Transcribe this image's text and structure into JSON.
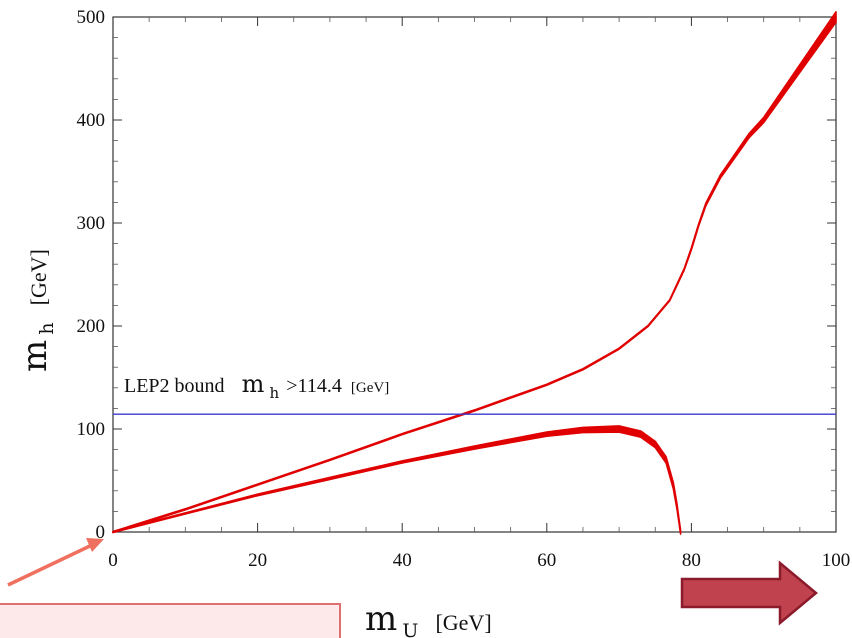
{
  "chart_data": {
    "type": "line",
    "xlim": [
      0,
      100
    ],
    "ylim": [
      0,
      500
    ],
    "x_ticks": [
      0,
      20,
      40,
      60,
      80,
      100
    ],
    "y_ticks": [
      0,
      100,
      200,
      300,
      400,
      500
    ],
    "x_tick_labels": [
      "0",
      "20",
      "40",
      "60",
      "80",
      "100"
    ],
    "y_tick_labels": [
      "0",
      "100",
      "200",
      "300",
      "400",
      "500"
    ],
    "xlabel": {
      "main": "m",
      "sub": "U",
      "unit": "[GeV]"
    },
    "ylabel": {
      "main": "m",
      "sub": "h",
      "unit": "[GeV]"
    },
    "grid": false,
    "colors": {
      "curve": "#e00000",
      "bound": "#3a3ad0",
      "arrow_fill": "#c0424e",
      "arrow_stroke": "#8b1a2a",
      "pointer": "#f07060",
      "box_fill": "#fde9e9",
      "box_stroke": "#e07070"
    },
    "series": [
      {
        "role": "upper-branch",
        "band": "narrow",
        "x": [
          0,
          10,
          20,
          30,
          40,
          50,
          60,
          65,
          70,
          74,
          77,
          79,
          80,
          81,
          82,
          84,
          86,
          88,
          90,
          92,
          94,
          96,
          98,
          100
        ],
        "y": [
          0,
          22,
          46,
          70,
          95,
          118,
          143,
          158,
          178,
          200,
          225,
          255,
          275,
          298,
          318,
          345,
          365,
          385,
          400,
          420,
          440,
          460,
          480,
          500
        ],
        "width": [
          1,
          1,
          1,
          1,
          1,
          1,
          1,
          1,
          1,
          1,
          1,
          1.5,
          2,
          2,
          2.5,
          3,
          3.5,
          4,
          5,
          6,
          7,
          8,
          9,
          10
        ]
      },
      {
        "role": "lower-branch",
        "band": "thick",
        "x": [
          0,
          10,
          20,
          30,
          40,
          50,
          60,
          65,
          70,
          73,
          75,
          76.5,
          77.5,
          78,
          78.3,
          78.5
        ],
        "y": [
          0,
          18,
          36,
          52,
          68,
          82,
          95,
          99,
          100,
          95,
          85,
          70,
          45,
          25,
          10,
          0
        ],
        "width": [
          1,
          1,
          1.5,
          2,
          2,
          3,
          4,
          5,
          6,
          6,
          6,
          6,
          6,
          5,
          4,
          4
        ]
      }
    ],
    "bound_line": {
      "y": 114.4
    },
    "annotation": {
      "text": "LEP2 bound",
      "m": "m",
      "sub": "h",
      "value": ">114.4",
      "unit": "[GeV]"
    }
  }
}
